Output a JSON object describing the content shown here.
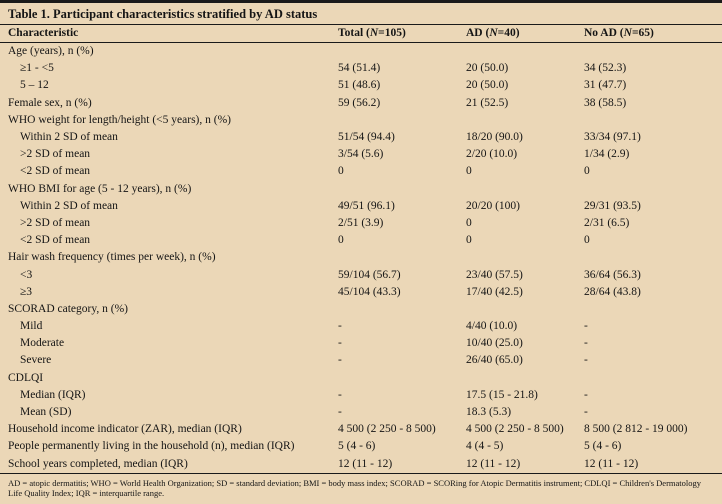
{
  "colors": {
    "background": "#ebd7b7",
    "rule_line": "#1a1a1a",
    "text": "#151515"
  },
  "table": {
    "title": "Table 1. Participant characteristics stratified by AD status",
    "columns": [
      "Characteristic",
      {
        "pre": "Total (",
        "it": "N",
        "post": "=105)"
      },
      {
        "pre": "AD (",
        "it": "N",
        "post": "=40)"
      },
      {
        "pre": "No AD (",
        "it": "N",
        "post": "=65)"
      }
    ],
    "rows": [
      {
        "label": "Age (years), n (%)",
        "indent": false,
        "cells": [
          "",
          "",
          ""
        ]
      },
      {
        "label": "≥1 - <5",
        "indent": true,
        "cells": [
          "54 (51.4)",
          "20 (50.0)",
          "34 (52.3)"
        ]
      },
      {
        "label": "5 – 12",
        "indent": true,
        "cells": [
          "51 (48.6)",
          "20 (50.0)",
          "31 (47.7)"
        ]
      },
      {
        "label": "Female sex, n (%)",
        "indent": false,
        "cells": [
          "59 (56.2)",
          "21 (52.5)",
          "38 (58.5)"
        ]
      },
      {
        "label": "WHO weight for length/height (<5 years), n (%)",
        "indent": false,
        "cells": [
          "",
          "",
          ""
        ]
      },
      {
        "label": "Within 2 SD of mean",
        "indent": true,
        "cells": [
          "51/54 (94.4)",
          "18/20 (90.0)",
          "33/34 (97.1)"
        ]
      },
      {
        "label": ">2 SD of mean",
        "indent": true,
        "cells": [
          "3/54 (5.6)",
          "2/20 (10.0)",
          "1/34 (2.9)"
        ]
      },
      {
        "label": "<2 SD of mean",
        "indent": true,
        "cells": [
          "0",
          "0",
          "0"
        ]
      },
      {
        "label": "WHO BMI for age (5 - 12 years), n (%)",
        "indent": false,
        "cells": [
          "",
          "",
          ""
        ]
      },
      {
        "label": "Within 2 SD of mean",
        "indent": true,
        "cells": [
          "49/51 (96.1)",
          "20/20 (100)",
          "29/31 (93.5)"
        ]
      },
      {
        "label": ">2 SD of mean",
        "indent": true,
        "cells": [
          "2/51 (3.9)",
          "0",
          "2/31 (6.5)"
        ]
      },
      {
        "label": "<2 SD of mean",
        "indent": true,
        "cells": [
          "0",
          "0",
          "0"
        ]
      },
      {
        "label": "Hair wash frequency (times per week), n (%)",
        "indent": false,
        "cells": [
          "",
          "",
          ""
        ]
      },
      {
        "label": "<3",
        "indent": true,
        "cells": [
          "59/104 (56.7)",
          "23/40 (57.5)",
          "36/64 (56.3)"
        ]
      },
      {
        "label": "≥3",
        "indent": true,
        "cells": [
          "45/104 (43.3)",
          "17/40 (42.5)",
          "28/64 (43.8)"
        ]
      },
      {
        "label": "SCORAD category, n (%)",
        "indent": false,
        "cells": [
          "",
          "",
          ""
        ]
      },
      {
        "label": "Mild",
        "indent": true,
        "cells": [
          "-",
          "4/40 (10.0)",
          "-"
        ]
      },
      {
        "label": "Moderate",
        "indent": true,
        "cells": [
          "-",
          "10/40 (25.0)",
          "-"
        ]
      },
      {
        "label": "Severe",
        "indent": true,
        "cells": [
          "-",
          "26/40 (65.0)",
          "-"
        ]
      },
      {
        "label": "CDLQI",
        "indent": false,
        "cells": [
          "",
          "",
          ""
        ]
      },
      {
        "label": "Median (IQR)",
        "indent": true,
        "cells": [
          "-",
          "17.5 (15 - 21.8)",
          "-"
        ]
      },
      {
        "label": "Mean (SD)",
        "indent": true,
        "cells": [
          "-",
          "18.3 (5.3)",
          "-"
        ]
      },
      {
        "label": "Household income indicator (ZAR), median (IQR)",
        "indent": false,
        "cells": [
          "4 500 (2 250 - 8 500)",
          "4 500 (2 250 - 8 500)",
          "8 500 (2 812 - 19 000)"
        ]
      },
      {
        "label": "People permanently living in the household (n), median (IQR)",
        "indent": false,
        "cells": [
          "5 (4 - 6)",
          "4 (4 - 5)",
          "5 (4 - 6)"
        ]
      },
      {
        "label": "School years completed, median (IQR)",
        "indent": false,
        "cells": [
          "12 (11 - 12)",
          "12 (11 - 12)",
          "12 (11 - 12)"
        ]
      }
    ],
    "footnote": "AD = atopic dermatitis; WHO = World Health Organization; SD = standard deviation; BMI = body mass index; SCORAD = SCORing for Atopic Dermatitis instrument; CDLQI = Children's Dermatology Life Quality Index; IQR = interquartile range."
  }
}
